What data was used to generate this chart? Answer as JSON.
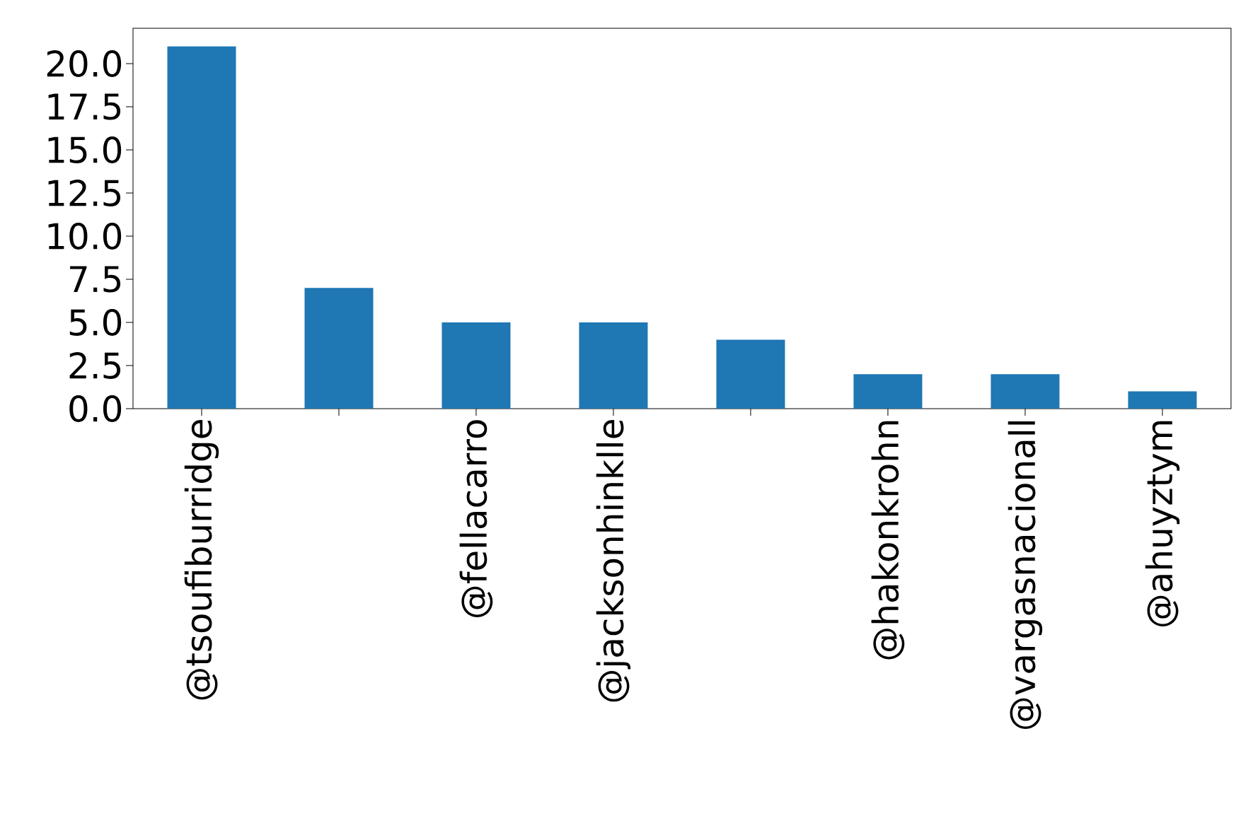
{
  "chart_data": {
    "type": "bar",
    "categories": [
      "@tsoufiburridge",
      null,
      "@fellacarro",
      "@jacksonhinklle",
      null,
      "@hakonkrohn",
      "@vargasnacionall",
      "@ahuyztym"
    ],
    "values": [
      21,
      7,
      5,
      5,
      4,
      2,
      2,
      1
    ],
    "color": "#1f77b4",
    "ylim": [
      0,
      22.05
    ],
    "yticks": [
      {
        "value": 0,
        "label": "0.0"
      },
      {
        "value": 2.5,
        "label": "2.5"
      },
      {
        "value": 5,
        "label": "5.0"
      },
      {
        "value": 7.5,
        "label": "7.5"
      },
      {
        "value": 10,
        "label": "10.0"
      },
      {
        "value": 12.5,
        "label": "12.5"
      },
      {
        "value": 15,
        "label": "15.0"
      },
      {
        "value": 17.5,
        "label": "17.5"
      },
      {
        "value": 20,
        "label": "20.0"
      }
    ]
  }
}
